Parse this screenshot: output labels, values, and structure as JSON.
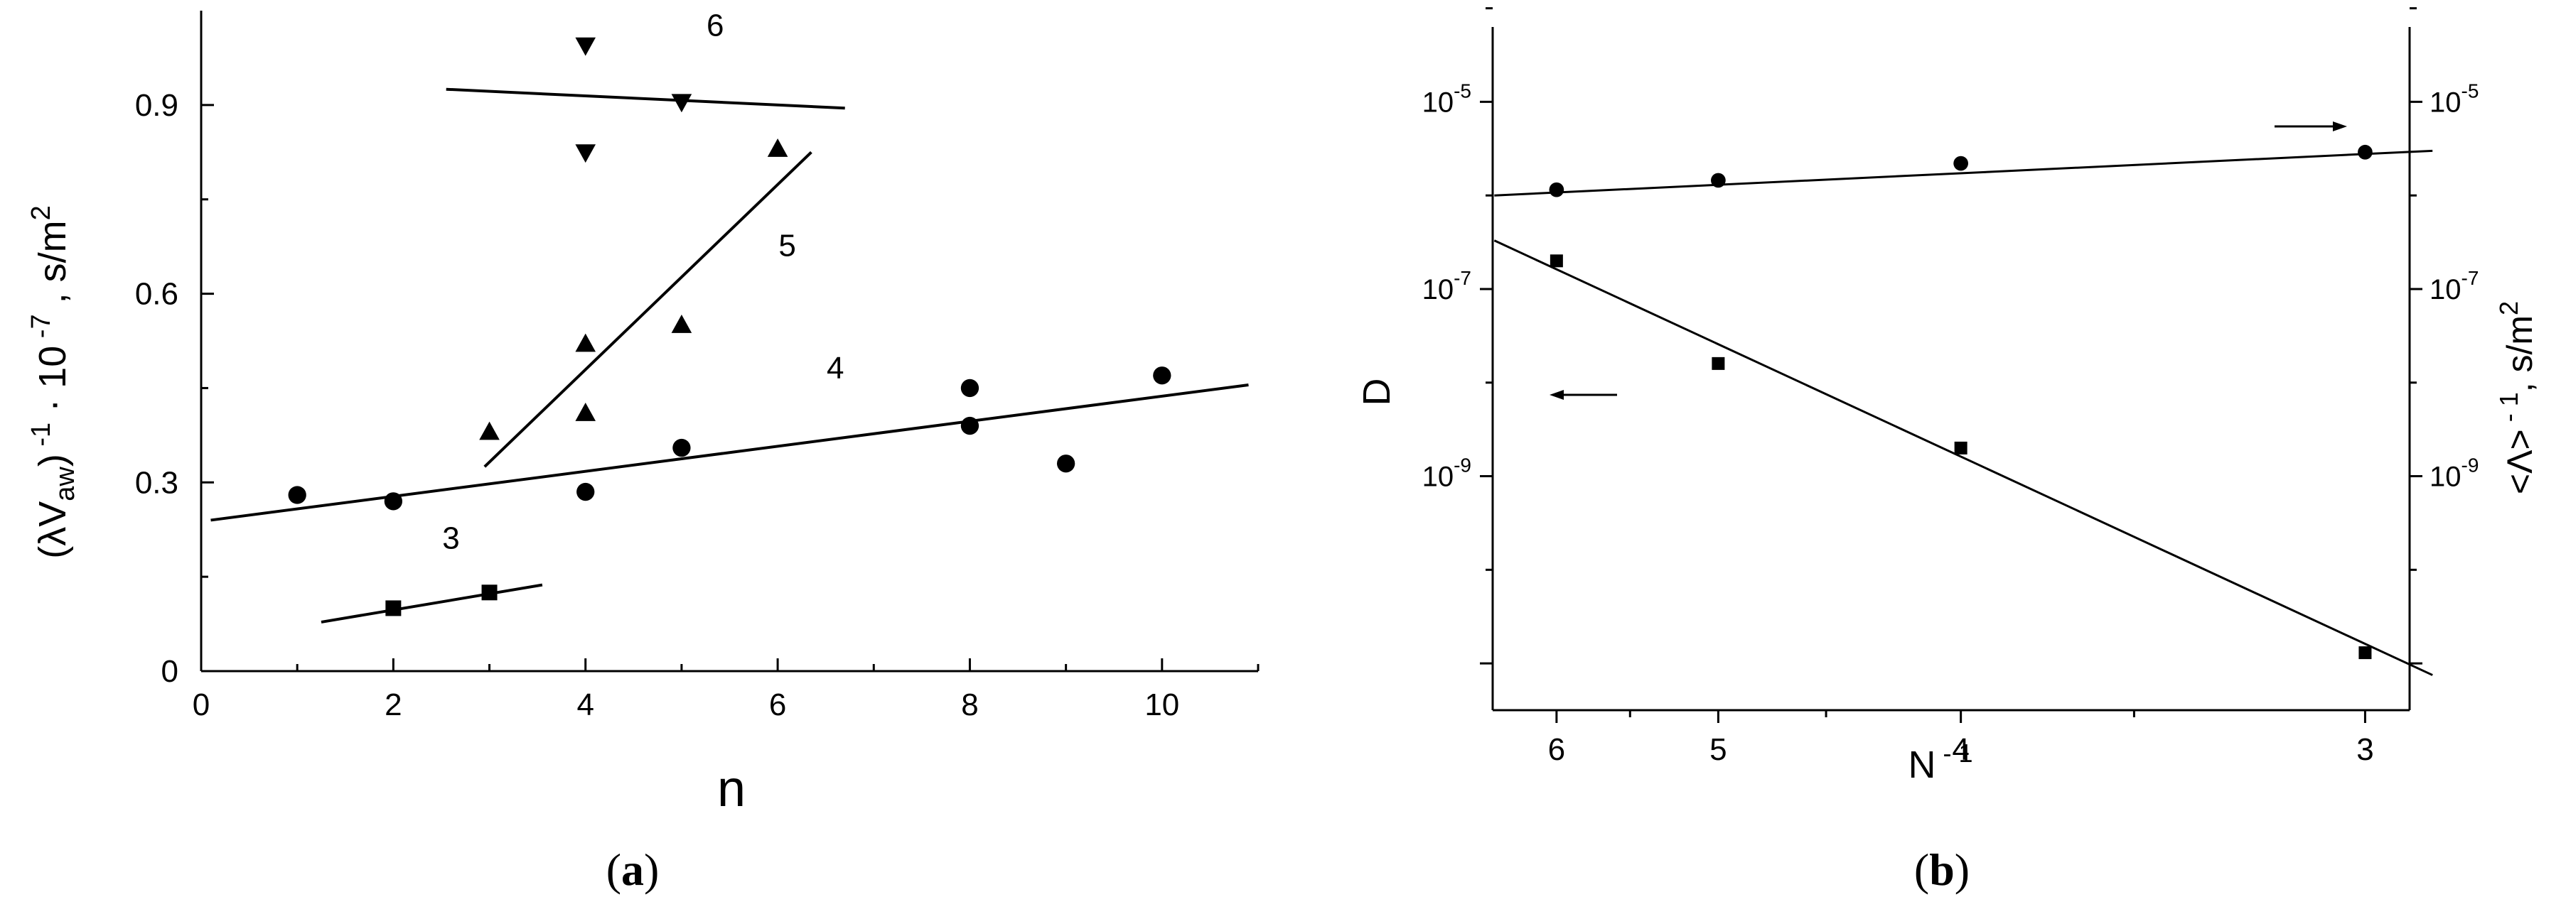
{
  "chart_data": [
    {
      "panel": "a",
      "type": "scatter",
      "panel_label": {
        "pre": "(",
        "letter": "a",
        "post": ")"
      },
      "xlabel": "n",
      "ylabel": "(λV_aw)^-1 · 10^-7 , s/m^2",
      "ylabel_parts": {
        "a": "(λV",
        "sub": "aw",
        "b": ")",
        "sup1": " -1",
        "c": " · 10",
        "sup2": " -7",
        "d": " , s/m",
        "sup3": "2"
      },
      "xlim": [
        0,
        11
      ],
      "ylim": [
        0,
        1.05
      ],
      "xticks": [
        0,
        2,
        4,
        6,
        8,
        10
      ],
      "yticks": [
        0,
        0.3,
        0.6,
        0.9
      ],
      "ytick_labels": [
        "0",
        "0.3",
        "0.6",
        "0.9"
      ],
      "series": [
        {
          "name": "3",
          "marker": "square",
          "points": [
            [
              2,
              0.1
            ],
            [
              3,
              0.125
            ]
          ],
          "fit": [
            [
              1.25,
              0.078
            ],
            [
              3.55,
              0.137
            ]
          ],
          "label_at": [
            2.6,
            0.195
          ]
        },
        {
          "name": "4",
          "marker": "circle",
          "points": [
            [
              1,
              0.28
            ],
            [
              2,
              0.27
            ],
            [
              4,
              0.285
            ],
            [
              5,
              0.355
            ],
            [
              8,
              0.45
            ],
            [
              8,
              0.39
            ],
            [
              9,
              0.33
            ],
            [
              10,
              0.47
            ]
          ],
          "fit": [
            [
              0.1,
              0.24
            ],
            [
              10.9,
              0.455
            ]
          ],
          "label_at": [
            6.6,
            0.465
          ]
        },
        {
          "name": "5",
          "marker": "triangle-up",
          "points": [
            [
              3,
              0.38
            ],
            [
              4,
              0.52
            ],
            [
              4,
              0.41
            ],
            [
              5,
              0.55
            ],
            [
              6,
              0.83
            ]
          ],
          "fit": [
            [
              2.95,
              0.325
            ],
            [
              6.35,
              0.825
            ]
          ],
          "label_at": [
            6.1,
            0.66
          ]
        },
        {
          "name": "6",
          "marker": "triangle-down",
          "points": [
            [
              4,
              0.995
            ],
            [
              4,
              0.825
            ],
            [
              5,
              0.905
            ]
          ],
          "fit": [
            [
              2.55,
              0.925
            ],
            [
              6.7,
              0.895
            ]
          ],
          "label_at": [
            5.35,
            1.01
          ]
        }
      ]
    },
    {
      "panel": "b",
      "type": "scatter",
      "panel_label": {
        "pre": "(",
        "letter": "b",
        "post": ")"
      },
      "xlabel": "N -1",
      "xlabel_parts": {
        "a": "N",
        "sup": " - 1"
      },
      "xscale": "reciprocal",
      "xticks": [
        6,
        5,
        4,
        3
      ],
      "xlim_inverse": [
        0.1535,
        0.3425
      ],
      "ylabel_left": "D",
      "ylabel_right": "<Λ> -1 , s/m 2",
      "ylabel_right_parts": {
        "a": "<Λ>",
        "sup1": " - 1",
        "b": ", s/m",
        "sup2": "2"
      },
      "yscale": "log",
      "ylim_log10": [
        -11.5,
        -4.2
      ],
      "yticks_major_exp": [
        -5,
        -7,
        -9
      ],
      "ytick_base": "10",
      "series": [
        {
          "name": "D",
          "marker": "square",
          "axis": "left",
          "points": [
            [
              6,
              2e-07
            ],
            [
              5,
              1.6e-08
            ],
            [
              4,
              2e-09
            ],
            [
              3,
              1.3e-11
            ]
          ],
          "fit": [
            [
              6.5,
              3.3e-07
            ],
            [
              2.88,
              7.5e-12
            ]
          ]
        },
        {
          "name": "<Λ>-1",
          "marker": "circle",
          "axis": "right",
          "points": [
            [
              6,
              1.15e-06
            ],
            [
              5,
              1.45e-06
            ],
            [
              4,
              2.2e-06
            ],
            [
              3,
              2.9e-06
            ]
          ],
          "fit": [
            [
              6.5,
              1e-06
            ],
            [
              2.88,
              3e-06
            ]
          ]
        }
      ]
    }
  ]
}
